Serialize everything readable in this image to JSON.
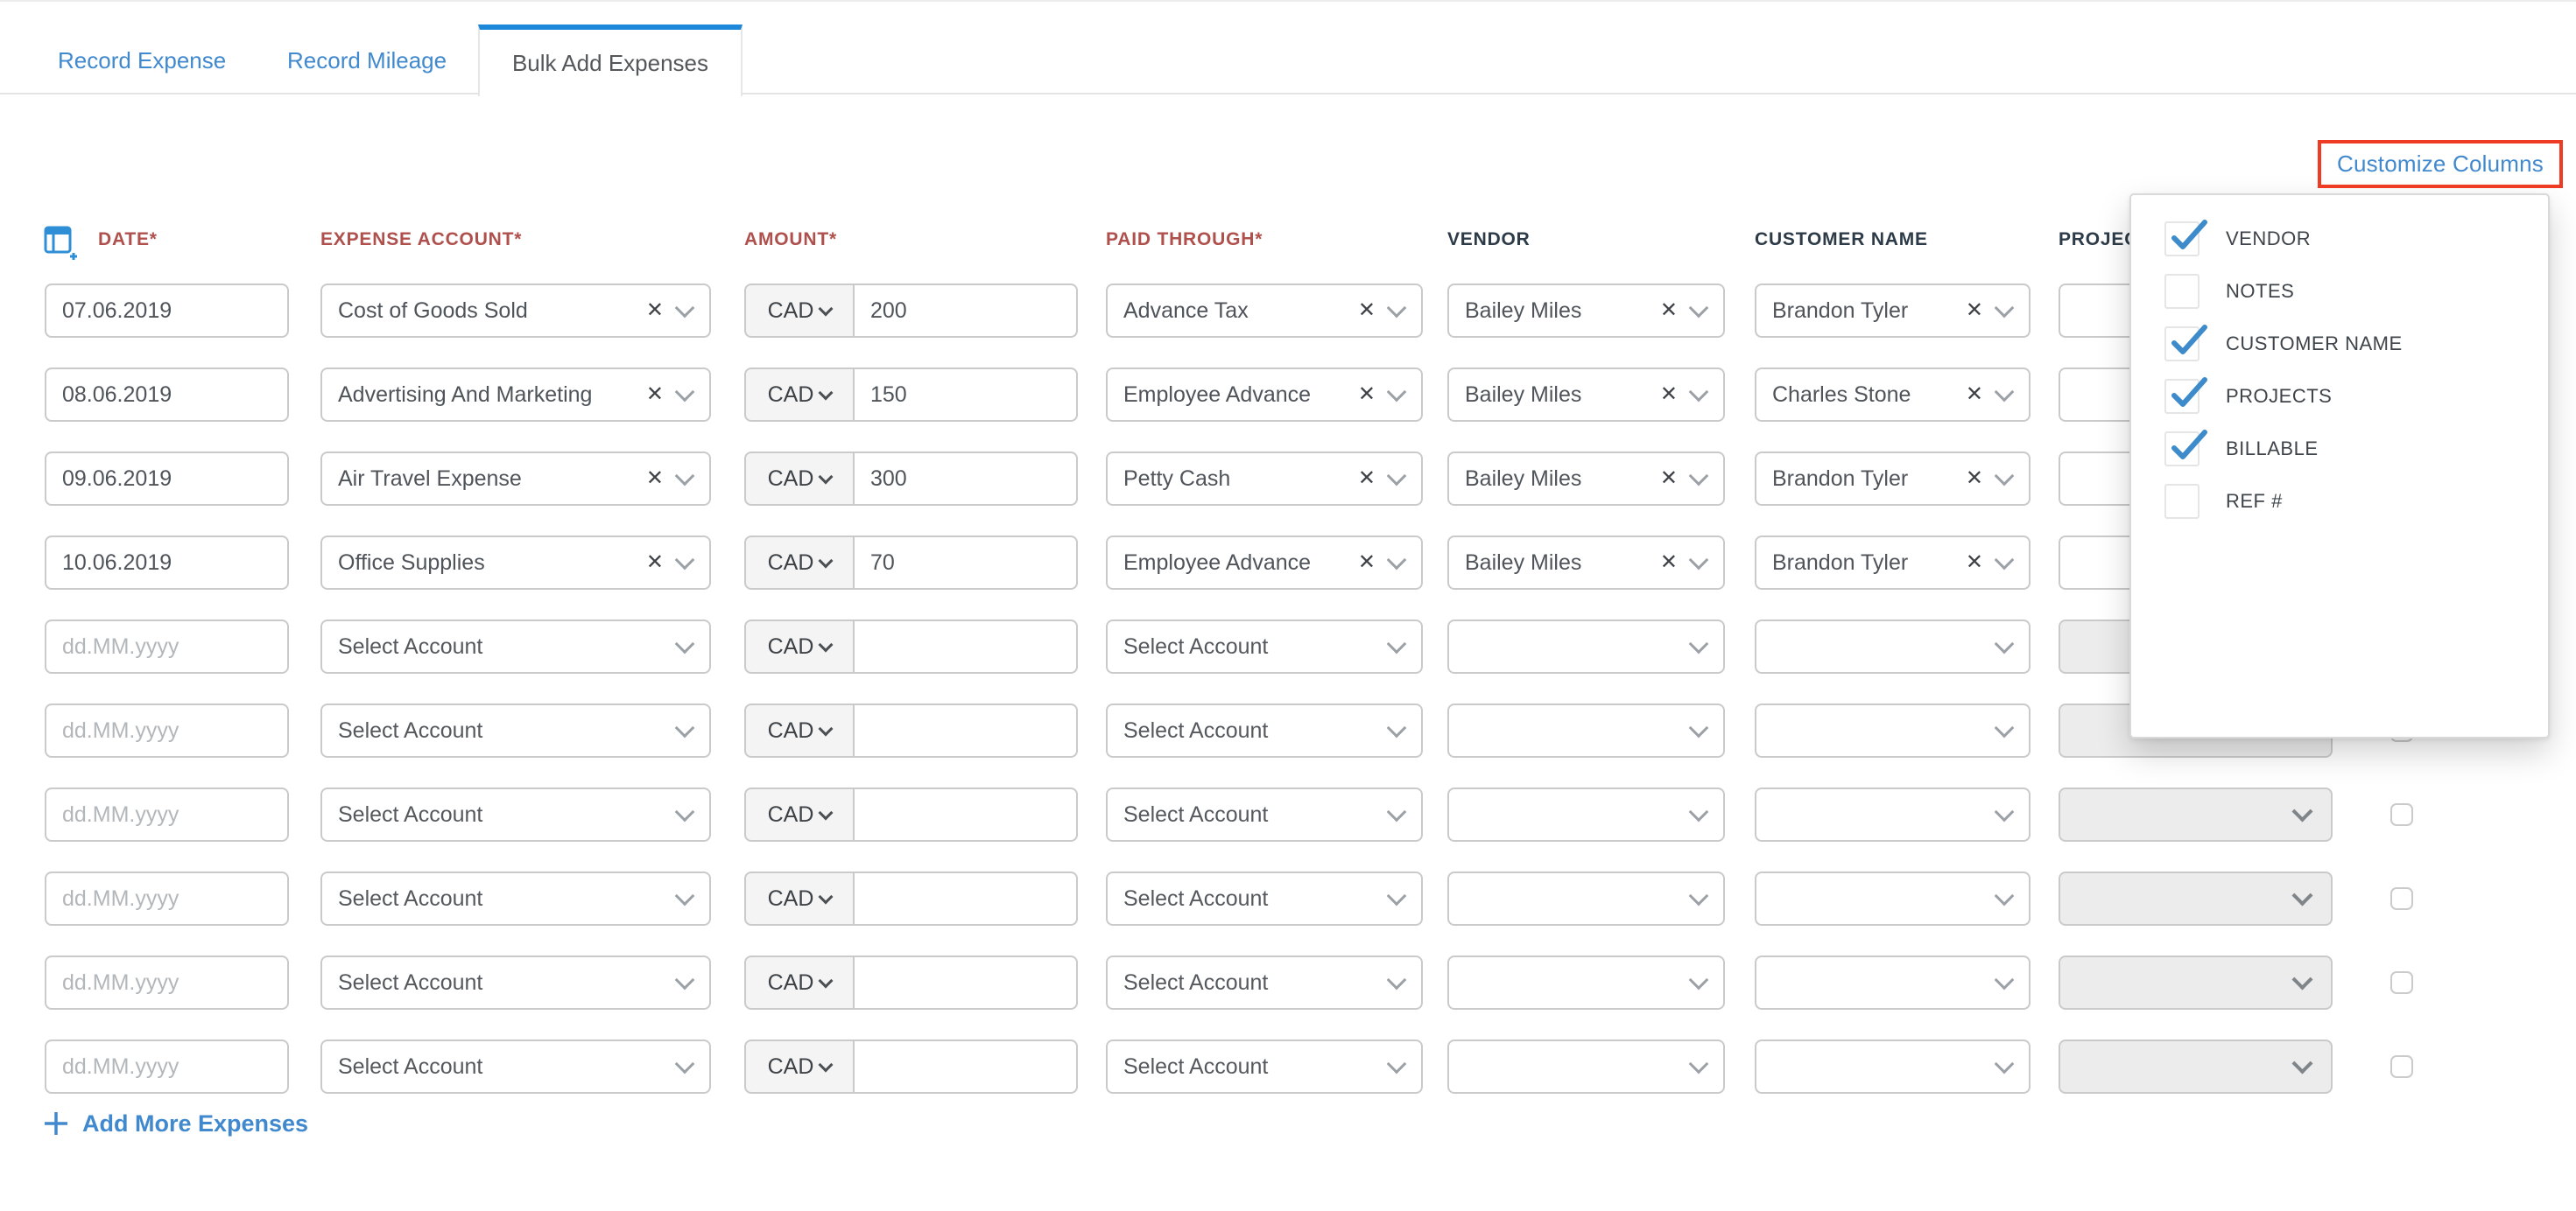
{
  "tabs": {
    "items": [
      {
        "label": "Record Expense",
        "active": false
      },
      {
        "label": "Record Mileage",
        "active": false
      },
      {
        "label": "Bulk Add Expenses",
        "active": true
      }
    ]
  },
  "toolbar": {
    "customize_columns_label": "Customize Columns"
  },
  "grid": {
    "headers": {
      "date": "DATE*",
      "expense_account": "EXPENSE ACCOUNT*",
      "amount": "AMOUNT*",
      "paid_through": "PAID THROUGH*",
      "vendor": "VENDOR",
      "customer_name": "CUSTOMER NAME",
      "projects": "PROJECTS"
    },
    "currency": "CAD",
    "date_placeholder": "dd.MM.yyyy",
    "select_placeholder": "Select Account",
    "rows": [
      {
        "filled": true,
        "date": "07.06.2019",
        "expense_account": "Cost of Goods Sold",
        "amount": "200",
        "paid_through": "Advance Tax",
        "vendor": "Bailey Miles",
        "customer_name": "Brandon Tyler"
      },
      {
        "filled": true,
        "date": "08.06.2019",
        "expense_account": "Advertising And Marketing",
        "amount": "150",
        "paid_through": "Employee Advance",
        "vendor": "Bailey Miles",
        "customer_name": "Charles Stone"
      },
      {
        "filled": true,
        "date": "09.06.2019",
        "expense_account": "Air Travel Expense",
        "amount": "300",
        "paid_through": "Petty Cash",
        "vendor": "Bailey Miles",
        "customer_name": "Brandon Tyler"
      },
      {
        "filled": true,
        "date": "10.06.2019",
        "expense_account": "Office Supplies",
        "amount": "70",
        "paid_through": "Employee Advance",
        "vendor": "Bailey Miles",
        "customer_name": "Brandon Tyler"
      },
      {
        "filled": false
      },
      {
        "filled": false
      },
      {
        "filled": false
      },
      {
        "filled": false
      },
      {
        "filled": false
      },
      {
        "filled": false
      }
    ]
  },
  "add_more": {
    "label": "Add More Expenses"
  },
  "customize_panel": {
    "items": [
      {
        "label": "VENDOR",
        "checked": true
      },
      {
        "label": "NOTES",
        "checked": false
      },
      {
        "label": "CUSTOMER NAME",
        "checked": true
      },
      {
        "label": "PROJECTS",
        "checked": true
      },
      {
        "label": "BILLABLE",
        "checked": true
      },
      {
        "label": "REF #",
        "checked": false
      }
    ]
  },
  "colors": {
    "accent_blue": "#4189ce",
    "tab_active_border": "#1d87d9",
    "required_header": "#b0504d",
    "optional_header": "#2c3b47",
    "annotation_red": "#ee3b23",
    "check_blue": "#3d8bcb",
    "disabled_field_bg": "#ececec"
  }
}
